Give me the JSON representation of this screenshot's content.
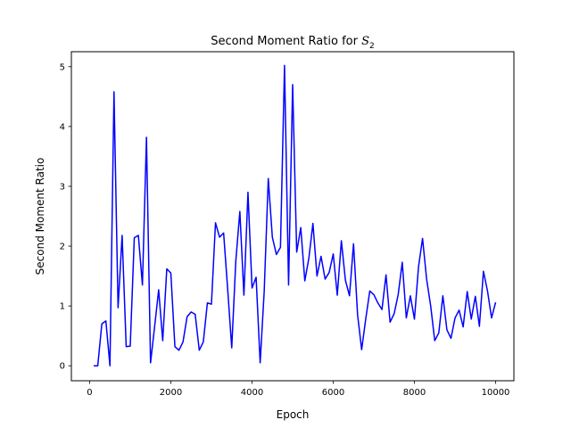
{
  "chart_data": {
    "type": "line",
    "title": "Second Moment Ratio for ",
    "title_math": "S",
    "title_sub": "2",
    "xlabel": "Epoch",
    "ylabel": "Second Moment Ratio",
    "xlim": [
      -450,
      10450
    ],
    "ylim": [
      -0.25,
      5.25
    ],
    "xticks": [
      0,
      2000,
      4000,
      6000,
      8000,
      10000
    ],
    "yticks": [
      0,
      1,
      2,
      3,
      4,
      5
    ],
    "grid": false,
    "series": [
      {
        "color": "#0000ff",
        "x": [
          100,
          200,
          300,
          400,
          500,
          600,
          700,
          800,
          900,
          1000,
          1100,
          1200,
          1300,
          1400,
          1500,
          1600,
          1700,
          1800,
          1900,
          2000,
          2100,
          2200,
          2300,
          2400,
          2500,
          2600,
          2700,
          2800,
          2900,
          3000,
          3100,
          3200,
          3300,
          3400,
          3500,
          3600,
          3700,
          3800,
          3900,
          4000,
          4100,
          4200,
          4300,
          4400,
          4500,
          4600,
          4700,
          4800,
          4900,
          5000,
          5100,
          5200,
          5300,
          5400,
          5500,
          5600,
          5700,
          5800,
          5900,
          6000,
          6100,
          6200,
          6300,
          6400,
          6500,
          6600,
          6700,
          6800,
          6900,
          7000,
          7100,
          7200,
          7300,
          7400,
          7500,
          7600,
          7700,
          7800,
          7900,
          8000,
          8100,
          8200,
          8300,
          8400,
          8500,
          8600,
          8700,
          8800,
          8900,
          9000,
          9100,
          9200,
          9300,
          9400,
          9500,
          9600,
          9700,
          9800,
          9900,
          10000
        ],
        "y": [
          0.0,
          0.0,
          0.7,
          0.75,
          0.0,
          4.58,
          0.97,
          2.18,
          0.32,
          0.33,
          2.14,
          2.18,
          1.35,
          3.82,
          0.05,
          0.65,
          1.27,
          0.42,
          1.62,
          1.55,
          0.32,
          0.26,
          0.4,
          0.82,
          0.9,
          0.86,
          0.26,
          0.4,
          1.05,
          1.03,
          2.39,
          2.15,
          2.22,
          1.28,
          0.3,
          1.75,
          2.58,
          1.18,
          2.9,
          1.3,
          1.48,
          0.05,
          1.25,
          3.13,
          2.15,
          1.86,
          1.98,
          5.02,
          1.35,
          4.7,
          1.9,
          2.31,
          1.42,
          1.8,
          2.38,
          1.5,
          1.83,
          1.45,
          1.56,
          1.87,
          1.18,
          2.09,
          1.43,
          1.17,
          2.04,
          0.85,
          0.27,
          0.78,
          1.25,
          1.19,
          1.05,
          0.94,
          1.52,
          0.73,
          0.87,
          1.19,
          1.73,
          0.8,
          1.17,
          0.78,
          1.65,
          2.13,
          1.45,
          1.0,
          0.42,
          0.55,
          1.17,
          0.6,
          0.46,
          0.8,
          0.93,
          0.65,
          1.24,
          0.78,
          1.16,
          0.66,
          1.58,
          1.25,
          0.8,
          1.06
        ]
      }
    ]
  }
}
